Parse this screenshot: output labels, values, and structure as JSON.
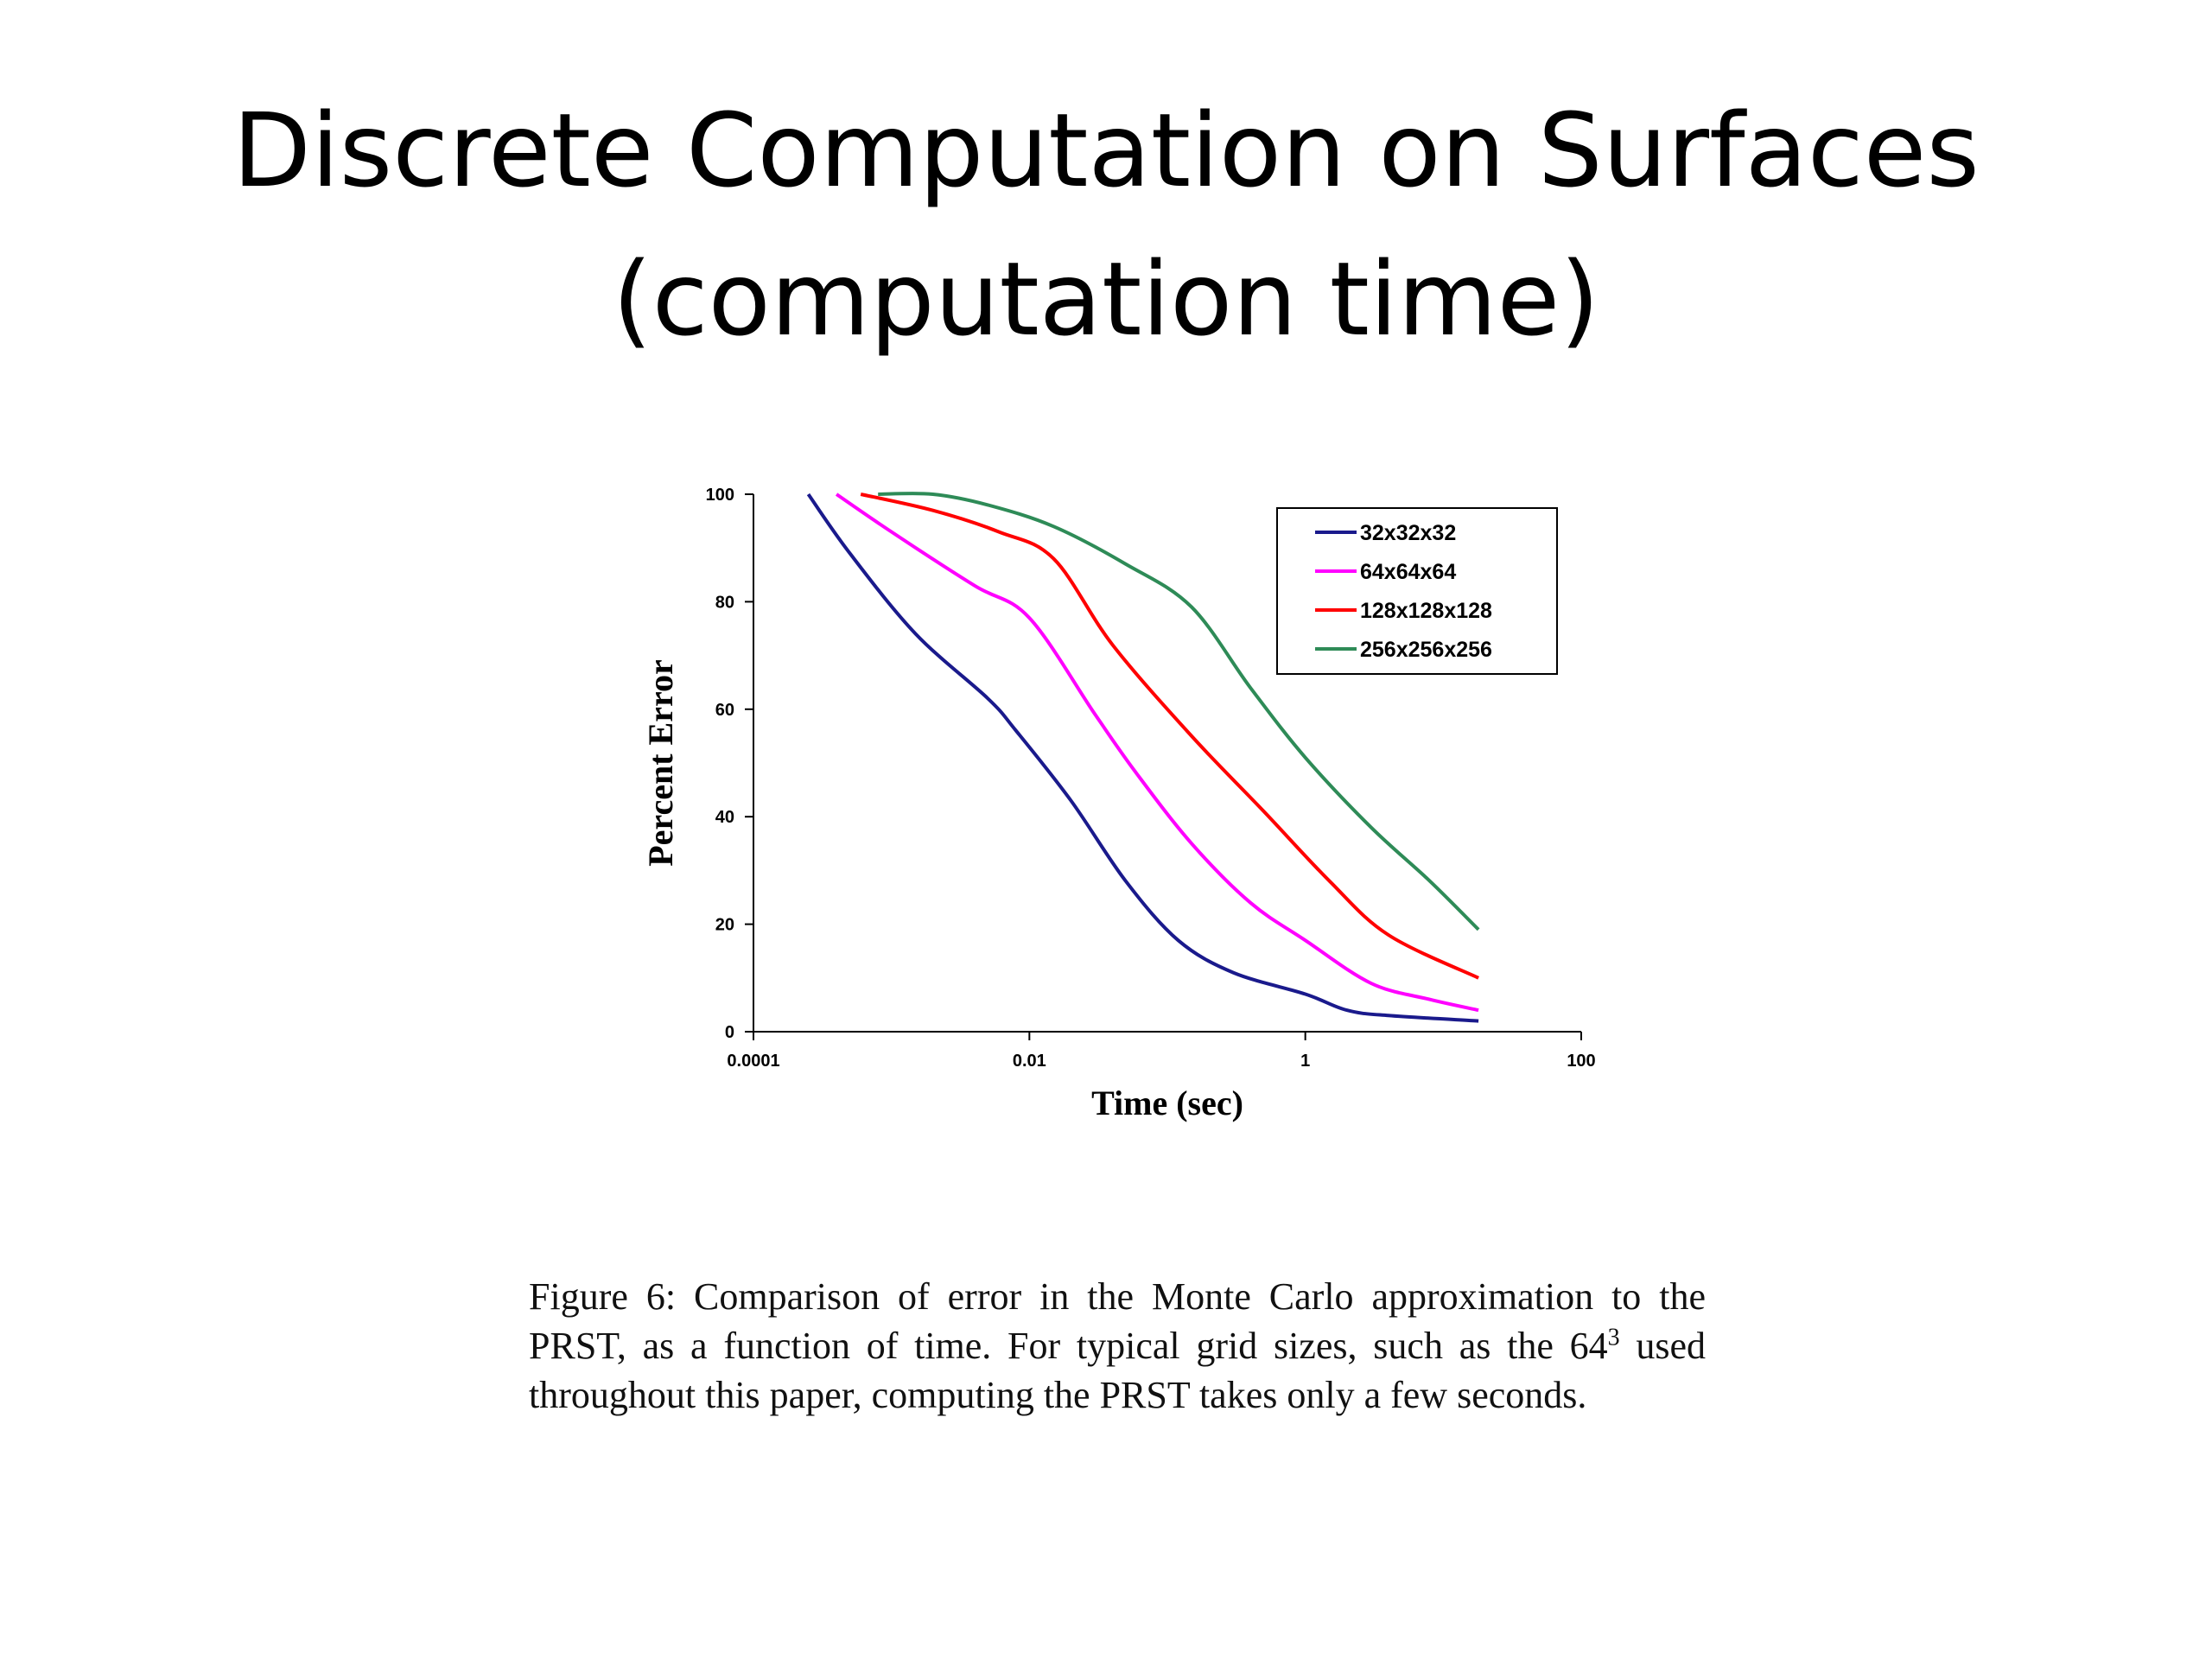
{
  "slide": {
    "title_line1": "Discrete Computation on Surfaces",
    "title_line2": "(computation time)"
  },
  "caption": {
    "part1": "Figure 6: Comparison of error in the Monte Carlo approximation to the PRST, as a function of time. For typical grid sizes, such as the 64",
    "superscript": "3",
    "part2": " used throughout this paper, computing the PRST takes only a few seconds."
  },
  "chart_data": {
    "type": "line",
    "xlabel": "Time (sec)",
    "ylabel": "Percent Error",
    "x_scale": "log",
    "xlim": [
      0.0001,
      100
    ],
    "ylim": [
      0,
      100
    ],
    "x_ticks": [
      0.0001,
      0.01,
      1,
      100
    ],
    "x_tick_labels": [
      "0.0001",
      "0.01",
      "1",
      "100"
    ],
    "y_ticks": [
      0,
      20,
      40,
      60,
      80,
      100
    ],
    "y_tick_labels": [
      "0",
      "20",
      "40",
      "60",
      "80",
      "100"
    ],
    "grid": false,
    "legend_position": "top-right",
    "series": [
      {
        "name": "32x32x32",
        "color": "#1a1a8c",
        "points": [
          [
            0.00025,
            100
          ],
          [
            0.0005,
            89
          ],
          [
            0.0015,
            74
          ],
          [
            0.005,
            62
          ],
          [
            0.008,
            56
          ],
          [
            0.02,
            43
          ],
          [
            0.05,
            28
          ],
          [
            0.12,
            17
          ],
          [
            0.3,
            11
          ],
          [
            1,
            7
          ],
          [
            2,
            4
          ],
          [
            4,
            3
          ],
          [
            18,
            2
          ]
        ]
      },
      {
        "name": "64x64x64",
        "color": "#ff00ff",
        "points": [
          [
            0.0004,
            100
          ],
          [
            0.001,
            93
          ],
          [
            0.004,
            83
          ],
          [
            0.01,
            77
          ],
          [
            0.03,
            59
          ],
          [
            0.06,
            48
          ],
          [
            0.15,
            35
          ],
          [
            0.4,
            24
          ],
          [
            1,
            17
          ],
          [
            3,
            9
          ],
          [
            8,
            6
          ],
          [
            18,
            4
          ]
        ]
      },
      {
        "name": "128x128x128",
        "color": "#ff0000",
        "points": [
          [
            0.0006,
            100
          ],
          [
            0.002,
            97
          ],
          [
            0.006,
            93
          ],
          [
            0.015,
            88
          ],
          [
            0.04,
            72
          ],
          [
            0.15,
            55
          ],
          [
            0.5,
            41
          ],
          [
            1.5,
            28
          ],
          [
            4,
            18
          ],
          [
            18,
            10
          ]
        ]
      },
      {
        "name": "256x256x256",
        "color": "#2e8b57",
        "points": [
          [
            0.0008,
            100
          ],
          [
            0.002,
            100
          ],
          [
            0.005,
            98
          ],
          [
            0.015,
            94
          ],
          [
            0.05,
            87
          ],
          [
            0.15,
            79
          ],
          [
            0.4,
            64
          ],
          [
            1,
            51
          ],
          [
            3,
            38
          ],
          [
            8,
            28
          ],
          [
            18,
            19
          ]
        ]
      }
    ]
  }
}
